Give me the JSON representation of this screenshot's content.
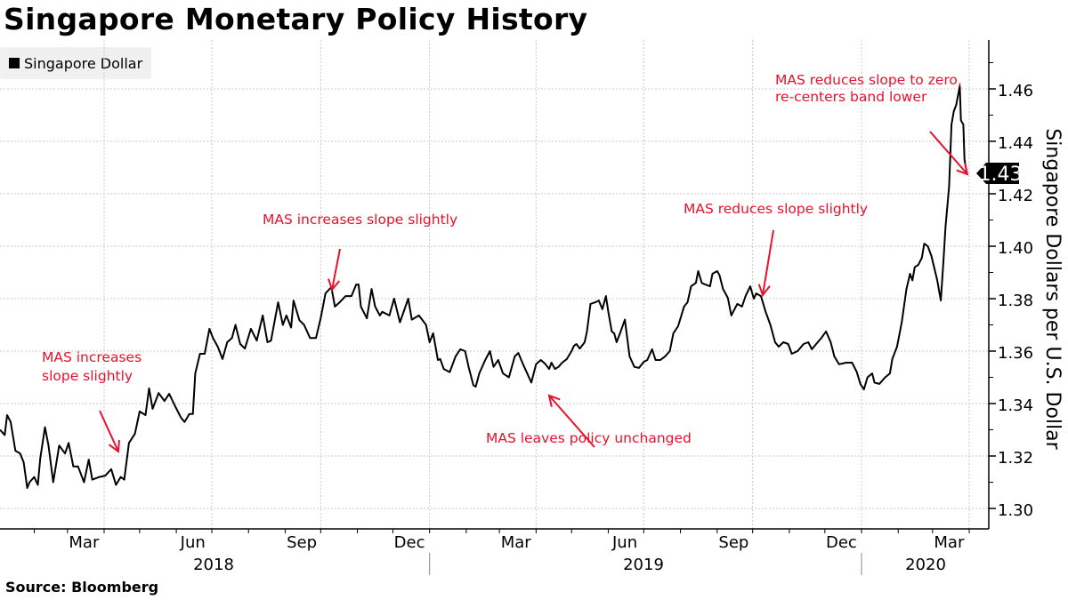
{
  "title": "Singapore Monetary Policy History",
  "source": "Source: Bloomberg",
  "colors": {
    "line": "#000000",
    "annotation": "#e8112d",
    "grid": "#c8c8c8",
    "legend_bg": "#f0f0f0"
  },
  "chart_data": {
    "type": "line",
    "title": "Singapore Monetary Policy History",
    "ylabel": "Singapore Dollars per U.S. Dollar",
    "yaxis_position": "right",
    "ylim": [
      1.29,
      1.475
    ],
    "yticks": [
      "1.30",
      "1.32",
      "1.34",
      "1.36",
      "1.38",
      "1.40",
      "1.42",
      "1.44",
      "1.46"
    ],
    "xlim": [
      "2018-01-03",
      "2020-03-30"
    ],
    "xtick_labels": [
      {
        "label": "Mar",
        "month": "2018-03"
      },
      {
        "label": "Jun",
        "month": "2018-06"
      },
      {
        "label": "Sep",
        "month": "2018-09"
      },
      {
        "label": "Dec",
        "month": "2018-12"
      },
      {
        "label": "Mar",
        "month": "2019-03"
      },
      {
        "label": "Jun",
        "month": "2019-06"
      },
      {
        "label": "Sep",
        "month": "2019-09"
      },
      {
        "label": "Dec",
        "month": "2019-12"
      },
      {
        "label": "Mar",
        "month": "2020-03"
      }
    ],
    "year_labels": [
      {
        "label": "2018",
        "year": "2018"
      },
      {
        "label": "2019",
        "year": "2019"
      },
      {
        "label": "2020",
        "year": "2020"
      }
    ],
    "grid": true,
    "legend": {
      "position": "top-left",
      "entries": [
        "Singapore Dollar"
      ]
    },
    "last_value_label": "1.43",
    "series": [
      {
        "name": "Singapore Dollar",
        "color": "#000000",
        "points": [
          [
            "2018-01-03",
            1.33
          ],
          [
            "2018-01-07",
            1.328
          ],
          [
            "2018-01-09",
            1.3356
          ],
          [
            "2018-01-12",
            1.333
          ],
          [
            "2018-01-16",
            1.322
          ],
          [
            "2018-01-20",
            1.321
          ],
          [
            "2018-01-23",
            1.3176
          ],
          [
            "2018-01-26",
            1.3078
          ],
          [
            "2018-01-28",
            1.31
          ],
          [
            "2018-02-01",
            1.312
          ],
          [
            "2018-02-04",
            1.309
          ],
          [
            "2018-02-06",
            1.319
          ],
          [
            "2018-02-10",
            1.331
          ],
          [
            "2018-02-13",
            1.324
          ],
          [
            "2018-02-17",
            1.31
          ],
          [
            "2018-02-22",
            1.324
          ],
          [
            "2018-02-27",
            1.321
          ],
          [
            "2018-03-02",
            1.325
          ],
          [
            "2018-03-06",
            1.316
          ],
          [
            "2018-03-10",
            1.316
          ],
          [
            "2018-03-15",
            1.31
          ],
          [
            "2018-03-19",
            1.3186
          ],
          [
            "2018-03-22",
            1.311
          ],
          [
            "2018-03-28",
            1.312
          ],
          [
            "2018-04-02",
            1.3125
          ],
          [
            "2018-04-07",
            1.315
          ],
          [
            "2018-04-11",
            1.309
          ],
          [
            "2018-04-15",
            1.312
          ],
          [
            "2018-04-18",
            1.311
          ],
          [
            "2018-04-22",
            1.325
          ],
          [
            "2018-04-27",
            1.3285
          ],
          [
            "2018-05-01",
            1.337
          ],
          [
            "2018-05-06",
            1.3356
          ],
          [
            "2018-05-09",
            1.3458
          ],
          [
            "2018-05-12",
            1.338
          ],
          [
            "2018-05-17",
            1.344
          ],
          [
            "2018-05-22",
            1.341
          ],
          [
            "2018-05-26",
            1.3437
          ],
          [
            "2018-05-31",
            1.339
          ],
          [
            "2018-06-05",
            1.3346
          ],
          [
            "2018-06-08",
            1.333
          ],
          [
            "2018-06-12",
            1.336
          ],
          [
            "2018-06-15",
            1.336
          ],
          [
            "2018-06-17",
            1.3515
          ],
          [
            "2018-06-21",
            1.359
          ],
          [
            "2018-06-25",
            1.359
          ],
          [
            "2018-06-29",
            1.3685
          ],
          [
            "2018-07-02",
            1.365
          ],
          [
            "2018-07-06",
            1.3617
          ],
          [
            "2018-07-10",
            1.357
          ],
          [
            "2018-07-14",
            1.3634
          ],
          [
            "2018-07-18",
            1.365
          ],
          [
            "2018-07-21",
            1.37
          ],
          [
            "2018-07-25",
            1.3627
          ],
          [
            "2018-07-29",
            1.361
          ],
          [
            "2018-08-03",
            1.3685
          ],
          [
            "2018-08-08",
            1.364
          ],
          [
            "2018-08-13",
            1.3736
          ],
          [
            "2018-08-17",
            1.3634
          ],
          [
            "2018-08-20",
            1.364
          ],
          [
            "2018-08-26",
            1.3786
          ],
          [
            "2018-08-30",
            1.37
          ],
          [
            "2018-09-02",
            1.3736
          ],
          [
            "2018-09-06",
            1.369
          ],
          [
            "2018-09-08",
            1.3793
          ],
          [
            "2018-09-13",
            1.3718
          ],
          [
            "2018-09-17",
            1.37
          ],
          [
            "2018-09-22",
            1.365
          ],
          [
            "2018-09-27",
            1.365
          ],
          [
            "2018-10-01",
            1.3725
          ],
          [
            "2018-10-05",
            1.382
          ],
          [
            "2018-10-10",
            1.3844
          ],
          [
            "2018-10-13",
            1.377
          ],
          [
            "2018-10-17",
            1.3786
          ],
          [
            "2018-10-22",
            1.381
          ],
          [
            "2018-10-27",
            1.381
          ],
          [
            "2018-10-31",
            1.3854
          ],
          [
            "2018-11-02",
            1.3854
          ],
          [
            "2018-11-04",
            1.377
          ],
          [
            "2018-11-09",
            1.3725
          ],
          [
            "2018-11-13",
            1.3837
          ],
          [
            "2018-11-16",
            1.377
          ],
          [
            "2018-11-20",
            1.3736
          ],
          [
            "2018-11-22",
            1.375
          ],
          [
            "2018-11-28",
            1.3736
          ],
          [
            "2018-12-02",
            1.38
          ],
          [
            "2018-12-07",
            1.371
          ],
          [
            "2018-12-14",
            1.38
          ],
          [
            "2018-12-17",
            1.372
          ],
          [
            "2018-12-23",
            1.3736
          ],
          [
            "2018-12-29",
            1.37
          ],
          [
            "2019-01-01",
            1.3634
          ],
          [
            "2019-01-04",
            1.3668
          ],
          [
            "2019-01-08",
            1.3566
          ],
          [
            "2019-01-10",
            1.357
          ],
          [
            "2019-01-13",
            1.3532
          ],
          [
            "2019-01-18",
            1.352
          ],
          [
            "2019-01-23",
            1.358
          ],
          [
            "2019-01-27",
            1.3607
          ],
          [
            "2019-01-31",
            1.36
          ],
          [
            "2019-02-03",
            1.354
          ],
          [
            "2019-02-07",
            1.347
          ],
          [
            "2019-02-09",
            1.3464
          ],
          [
            "2019-02-12",
            1.3515
          ],
          [
            "2019-02-17",
            1.3566
          ],
          [
            "2019-02-21",
            1.36
          ],
          [
            "2019-02-24",
            1.354
          ],
          [
            "2019-02-28",
            1.3566
          ],
          [
            "2019-03-04",
            1.3515
          ],
          [
            "2019-03-09",
            1.35
          ],
          [
            "2019-03-14",
            1.358
          ],
          [
            "2019-03-17",
            1.3593
          ],
          [
            "2019-03-21",
            1.355
          ],
          [
            "2019-03-24",
            1.352
          ],
          [
            "2019-03-28",
            1.348
          ],
          [
            "2019-04-01",
            1.355
          ],
          [
            "2019-04-05",
            1.3566
          ],
          [
            "2019-04-09",
            1.355
          ],
          [
            "2019-04-12",
            1.3532
          ],
          [
            "2019-04-14",
            1.3556
          ],
          [
            "2019-04-17",
            1.3532
          ],
          [
            "2019-04-20",
            1.354
          ],
          [
            "2019-04-23",
            1.3556
          ],
          [
            "2019-04-27",
            1.357
          ],
          [
            "2019-05-01",
            1.36
          ],
          [
            "2019-05-03",
            1.362
          ],
          [
            "2019-05-05",
            1.3627
          ],
          [
            "2019-05-08",
            1.361
          ],
          [
            "2019-05-12",
            1.3634
          ],
          [
            "2019-05-14",
            1.3675
          ],
          [
            "2019-05-17",
            1.378
          ],
          [
            "2019-05-21",
            1.3786
          ],
          [
            "2019-05-24",
            1.3793
          ],
          [
            "2019-05-27",
            1.376
          ],
          [
            "2019-05-30",
            1.381
          ],
          [
            "2019-06-01",
            1.375
          ],
          [
            "2019-06-04",
            1.3675
          ],
          [
            "2019-06-06",
            1.3668
          ],
          [
            "2019-06-08",
            1.3634
          ],
          [
            "2019-06-11",
            1.3668
          ],
          [
            "2019-06-15",
            1.372
          ],
          [
            "2019-06-19",
            1.358
          ],
          [
            "2019-06-23",
            1.354
          ],
          [
            "2019-06-27",
            1.3536
          ],
          [
            "2019-07-01",
            1.3559
          ],
          [
            "2019-07-04",
            1.3566
          ],
          [
            "2019-07-08",
            1.3607
          ],
          [
            "2019-07-11",
            1.3566
          ],
          [
            "2019-07-15",
            1.3566
          ],
          [
            "2019-07-19",
            1.358
          ],
          [
            "2019-07-23",
            1.36
          ],
          [
            "2019-07-26",
            1.3668
          ],
          [
            "2019-07-30",
            1.3695
          ],
          [
            "2019-08-04",
            1.377
          ],
          [
            "2019-08-07",
            1.3786
          ],
          [
            "2019-08-10",
            1.3847
          ],
          [
            "2019-08-14",
            1.386
          ],
          [
            "2019-08-16",
            1.3905
          ],
          [
            "2019-08-19",
            1.386
          ],
          [
            "2019-08-22",
            1.3854
          ],
          [
            "2019-08-26",
            1.3847
          ],
          [
            "2019-08-28",
            1.3895
          ],
          [
            "2019-09-01",
            1.3905
          ],
          [
            "2019-09-03",
            1.389
          ],
          [
            "2019-09-06",
            1.3837
          ],
          [
            "2019-09-10",
            1.3803
          ],
          [
            "2019-09-13",
            1.3736
          ],
          [
            "2019-09-18",
            1.378
          ],
          [
            "2019-09-22",
            1.377
          ],
          [
            "2019-09-25",
            1.381
          ],
          [
            "2019-09-29",
            1.3847
          ],
          [
            "2019-10-02",
            1.38
          ],
          [
            "2019-10-04",
            1.382
          ],
          [
            "2019-10-08",
            1.381
          ],
          [
            "2019-10-12",
            1.375
          ],
          [
            "2019-10-16",
            1.37
          ],
          [
            "2019-10-20",
            1.3634
          ],
          [
            "2019-10-23",
            1.3617
          ],
          [
            "2019-10-27",
            1.3634
          ],
          [
            "2019-10-31",
            1.3627
          ],
          [
            "2019-11-03",
            1.359
          ],
          [
            "2019-11-08",
            1.36
          ],
          [
            "2019-11-13",
            1.3627
          ],
          [
            "2019-11-17",
            1.3634
          ],
          [
            "2019-11-20",
            1.3607
          ],
          [
            "2019-11-25",
            1.3634
          ],
          [
            "2019-11-28",
            1.365
          ],
          [
            "2019-12-02",
            1.3675
          ],
          [
            "2019-12-06",
            1.3634
          ],
          [
            "2019-12-09",
            1.358
          ],
          [
            "2019-12-13",
            1.355
          ],
          [
            "2019-12-19",
            1.3556
          ],
          [
            "2019-12-24",
            1.3556
          ],
          [
            "2019-12-28",
            1.352
          ],
          [
            "2019-12-31",
            1.3475
          ],
          [
            "2020-01-03",
            1.3454
          ],
          [
            "2020-01-06",
            1.35
          ],
          [
            "2020-01-10",
            1.3515
          ],
          [
            "2020-01-12",
            1.348
          ],
          [
            "2020-01-16",
            1.3475
          ],
          [
            "2020-01-21",
            1.35
          ],
          [
            "2020-01-25",
            1.3515
          ],
          [
            "2020-01-27",
            1.357
          ],
          [
            "2020-01-31",
            1.3617
          ],
          [
            "2020-02-04",
            1.371
          ],
          [
            "2020-02-08",
            1.3837
          ],
          [
            "2020-02-11",
            1.3895
          ],
          [
            "2020-02-13",
            1.387
          ],
          [
            "2020-02-15",
            1.392
          ],
          [
            "2020-02-18",
            1.3929
          ],
          [
            "2020-02-21",
            1.3956
          ],
          [
            "2020-02-23",
            1.401
          ],
          [
            "2020-02-26",
            1.4
          ],
          [
            "2020-02-29",
            1.3963
          ],
          [
            "2020-03-05",
            1.387
          ],
          [
            "2020-03-08",
            1.3793
          ],
          [
            "2020-03-10",
            1.393
          ],
          [
            "2020-03-12",
            1.4075
          ],
          [
            "2020-03-15",
            1.4227
          ],
          [
            "2020-03-17",
            1.4464
          ],
          [
            "2020-03-19",
            1.4515
          ],
          [
            "2020-03-21",
            1.4539
          ],
          [
            "2020-03-24",
            1.461
          ],
          [
            "2020-03-25",
            1.448
          ],
          [
            "2020-03-27",
            1.4464
          ],
          [
            "2020-03-28",
            1.433
          ],
          [
            "2020-03-30",
            1.4278
          ]
        ]
      }
    ],
    "annotations": [
      {
        "lines": [
          "MAS increases",
          "slope slightly"
        ],
        "date": "2018-04-13"
      },
      {
        "lines": [
          "MAS increases slope slightly"
        ],
        "date": "2018-10-12"
      },
      {
        "lines": [
          "MAS leaves policy unchanged"
        ],
        "date": "2019-04-12"
      },
      {
        "lines": [
          "MAS reduces slope slightly"
        ],
        "date": "2019-10-14"
      },
      {
        "lines": [
          "MAS reduces slope to zero,",
          "re-centers band lower"
        ],
        "date": "2020-03-30"
      }
    ]
  }
}
